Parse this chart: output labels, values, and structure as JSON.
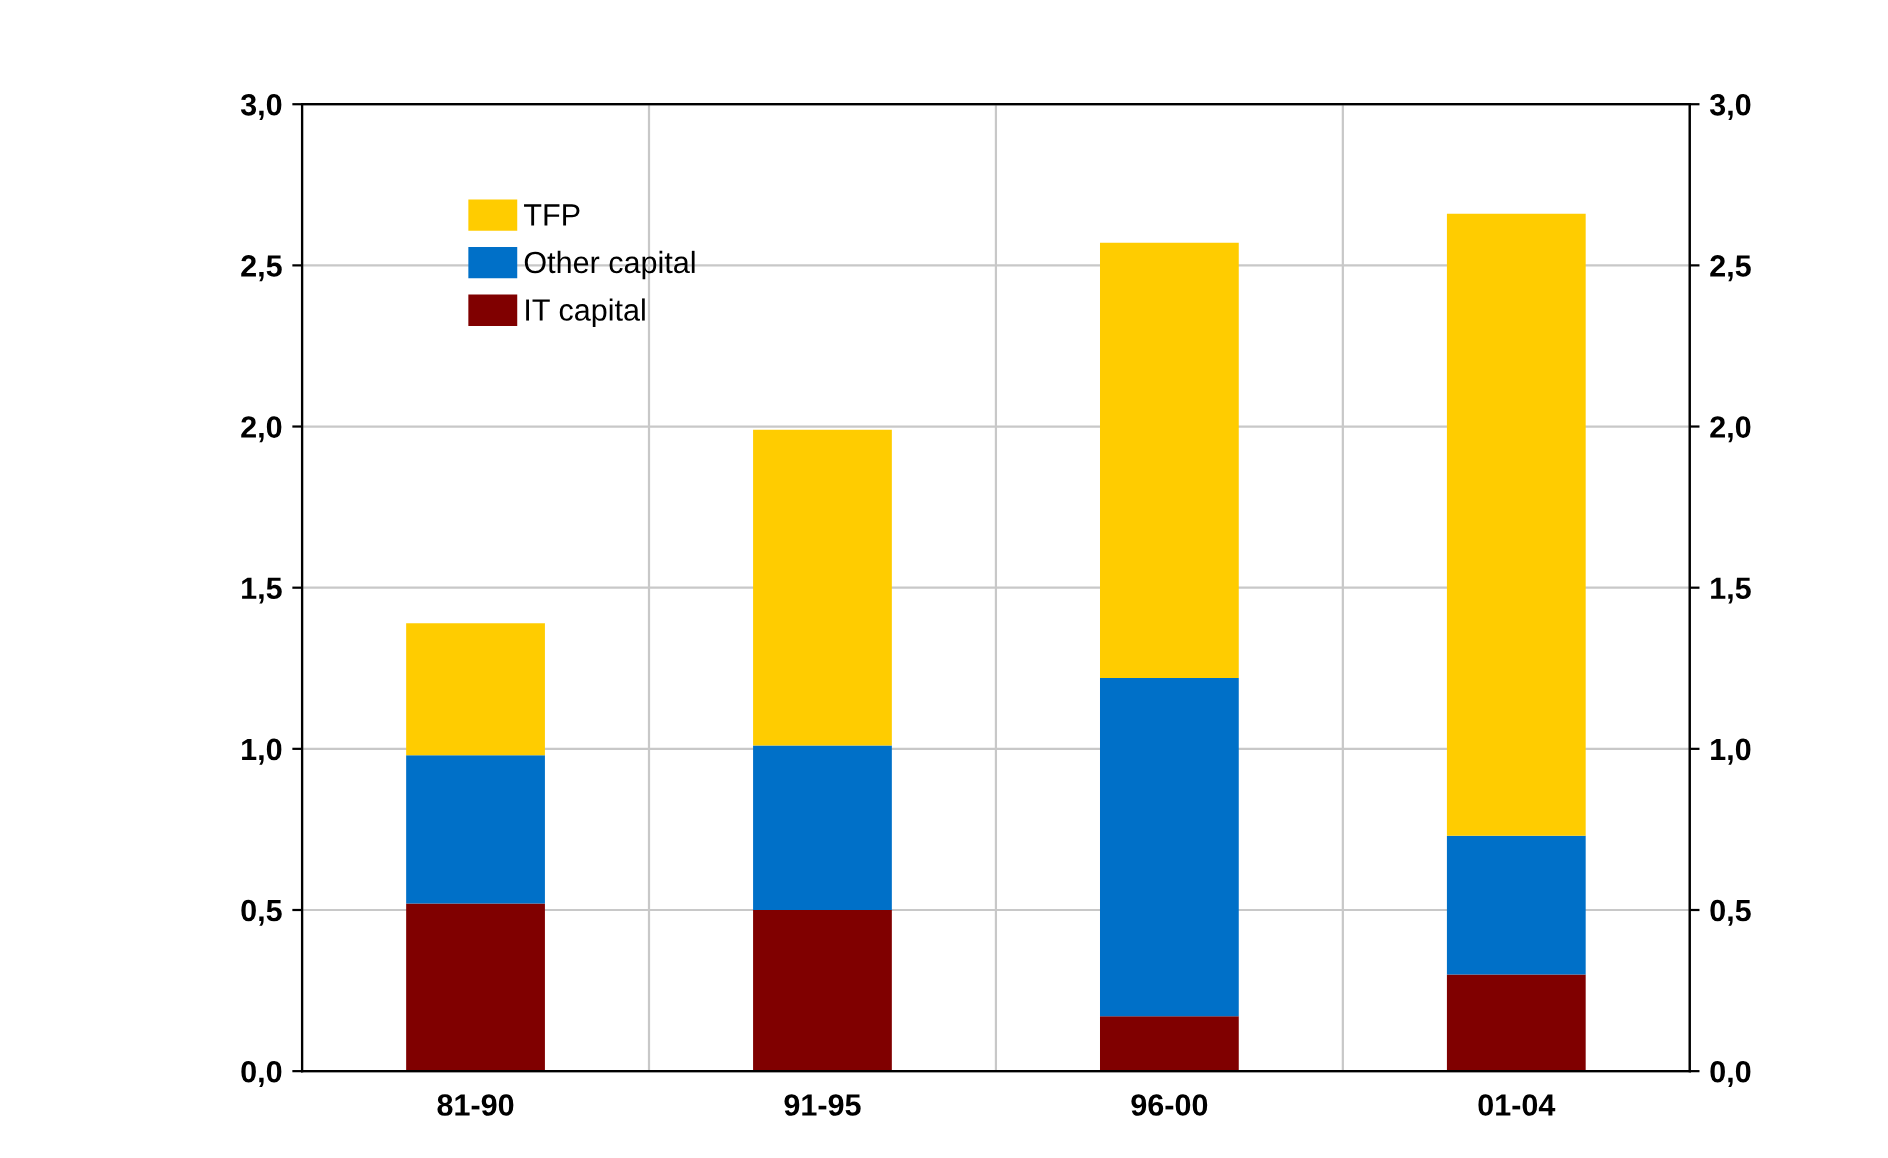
{
  "chart_data": {
    "type": "bar",
    "stacked": true,
    "categories": [
      "81-90",
      "91-95",
      "96-00",
      "01-04"
    ],
    "series": [
      {
        "name": "IT capital",
        "color": "#800000",
        "values": [
          0.52,
          0.5,
          0.17,
          0.3
        ]
      },
      {
        "name": "Other capital",
        "color": "#0070c8",
        "values": [
          0.46,
          0.51,
          1.05,
          0.43
        ]
      },
      {
        "name": "TFP",
        "color": "#ffcc00",
        "values": [
          0.41,
          0.98,
          1.35,
          1.93
        ]
      }
    ],
    "ylim": [
      0,
      3
    ],
    "yticks": [
      {
        "value": 0,
        "label": "0,0"
      },
      {
        "value": 0.5,
        "label": "0,5"
      },
      {
        "value": 1,
        "label": "1,0"
      },
      {
        "value": 1.5,
        "label": "1,5"
      },
      {
        "value": 2,
        "label": "2,0"
      },
      {
        "value": 2.5,
        "label": "2,5"
      },
      {
        "value": 3,
        "label": "3,0"
      }
    ],
    "y2lim": [
      0,
      3
    ],
    "y2ticks": [
      {
        "value": 0,
        "label": "0,0"
      },
      {
        "value": 0.5,
        "label": "0,5"
      },
      {
        "value": 1,
        "label": "1,0"
      },
      {
        "value": 1.5,
        "label": "1,5"
      },
      {
        "value": 2,
        "label": "2,0"
      },
      {
        "value": 2.5,
        "label": "2,5"
      },
      {
        "value": 3,
        "label": "3,0"
      }
    ],
    "grid": true,
    "legend": "top left"
  }
}
